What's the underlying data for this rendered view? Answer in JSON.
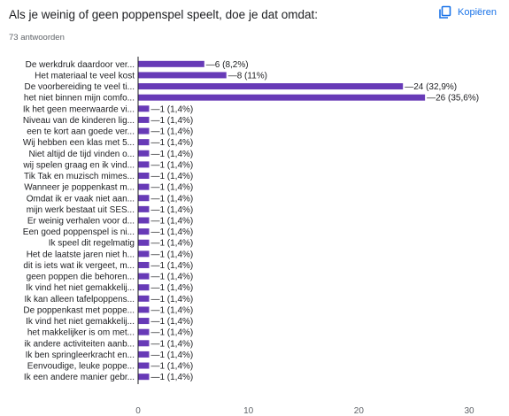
{
  "header": {
    "title": "Als je weinig of geen poppenspel speelt, doe je dat omdat:",
    "response_count": "73 antwoorden",
    "copy_label": "Kopiëren",
    "copy_icon": "copy-icon"
  },
  "colors": {
    "bar": "#673ab7",
    "accent": "#1a73e8",
    "axis": "#202124",
    "grid": "#e0e0e0"
  },
  "chart_data": {
    "type": "bar",
    "orientation": "horizontal",
    "xlim": [
      0,
      30
    ],
    "xticks": [
      0,
      10,
      20,
      30
    ],
    "categories": [
      "De werkdruk daardoor ver...",
      "Het materiaal te veel kost",
      "De voorbereiding te veel ti...",
      "het niet binnen mijn comfo...",
      "Ik het geen meerwaarde vi...",
      "Niveau van de kinderen lig...",
      "een te kort aan goede ver...",
      "Wij hebben een klas met 5...",
      "Niet altijd de tijd vinden o...",
      "wij spelen graag en ik vind...",
      "Tik Tak en muzisch mimes...",
      "Wanneer je poppenkast m...",
      "Omdat ik er vaak niet aan...",
      "mijn werk bestaat uit SES...",
      "Er weinig verhalen voor d...",
      "Een goed poppenspel is ni...",
      "Ik speel dit regelmatig",
      "Het de laatste jaren niet h...",
      "dit is iets wat ik vergeet, m...",
      "geen poppen die behoren...",
      "Ik vind het niet gemakkelij...",
      "Ik kan alleen tafelpoppens...",
      "De poppenkast met poppe...",
      "Ik vind het niet gemakkelij...",
      "het makkelijker is om met...",
      "ik andere activiteiten aanb...",
      "Ik ben springleerkracht en...",
      "Eenvoudige, leuke poppe...",
      "Ik een andere manier gebr..."
    ],
    "values": [
      6,
      8,
      24,
      26,
      1,
      1,
      1,
      1,
      1,
      1,
      1,
      1,
      1,
      1,
      1,
      1,
      1,
      1,
      1,
      1,
      1,
      1,
      1,
      1,
      1,
      1,
      1,
      1,
      1
    ],
    "value_labels": [
      "6 (8,2%)",
      "8 (11%)",
      "24 (32,9%)",
      "26 (35,6%)",
      "1 (1,4%)",
      "1 (1,4%)",
      "1 (1,4%)",
      "1 (1,4%)",
      "1 (1,4%)",
      "1 (1,4%)",
      "1 (1,4%)",
      "1 (1,4%)",
      "1 (1,4%)",
      "1 (1,4%)",
      "1 (1,4%)",
      "1 (1,4%)",
      "1 (1,4%)",
      "1 (1,4%)",
      "1 (1,4%)",
      "1 (1,4%)",
      "1 (1,4%)",
      "1 (1,4%)",
      "1 (1,4%)",
      "1 (1,4%)",
      "1 (1,4%)",
      "1 (1,4%)",
      "1 (1,4%)",
      "1 (1,4%)",
      "1 (1,4%)"
    ],
    "grid": false,
    "legend": "none"
  }
}
